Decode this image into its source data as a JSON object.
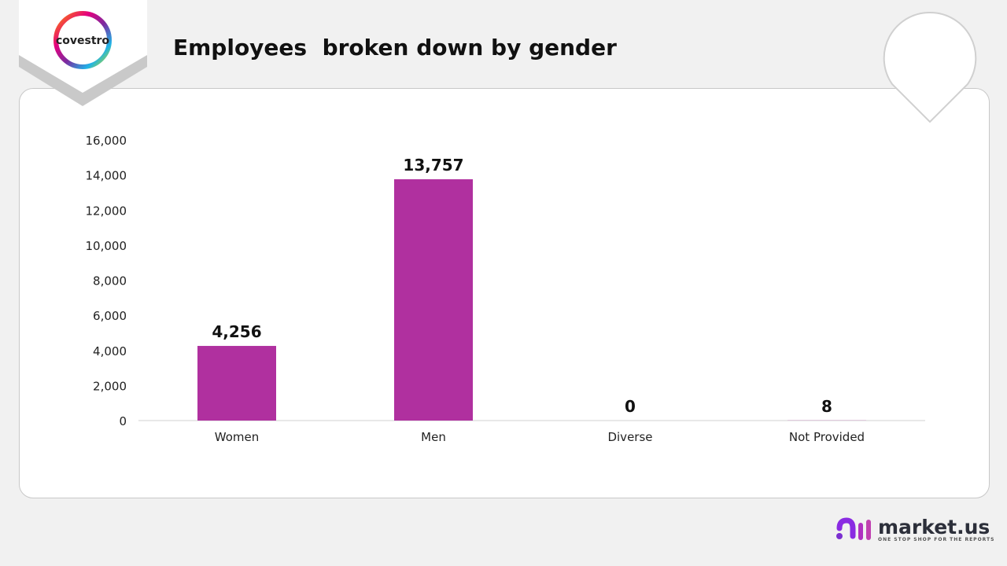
{
  "header": {
    "title": "Employees  broken down by gender",
    "company_logo_text": "covestro"
  },
  "footer": {
    "brand_name": "market",
    "brand_suffix": ".us",
    "brand_tagline": "ONE STOP SHOP FOR THE REPORTS"
  },
  "colors": {
    "bar": "#b0309f",
    "background": "#f1f1f1"
  },
  "chart_data": {
    "type": "bar",
    "title": "Employees  broken down by gender",
    "categories": [
      "Women",
      "Men",
      "Diverse",
      "Not Provided"
    ],
    "values": [
      4256,
      13757,
      0,
      8
    ],
    "data_labels": [
      "4,256",
      "13,757",
      "0",
      "8"
    ],
    "yticks": [
      "0",
      "2,000",
      "4,000",
      "6,000",
      "8,000",
      "10,000",
      "12,000",
      "14,000",
      "16,000"
    ],
    "ylim": [
      0,
      16000
    ],
    "xlabel": "",
    "ylabel": "",
    "grid": false,
    "legend": "none"
  }
}
